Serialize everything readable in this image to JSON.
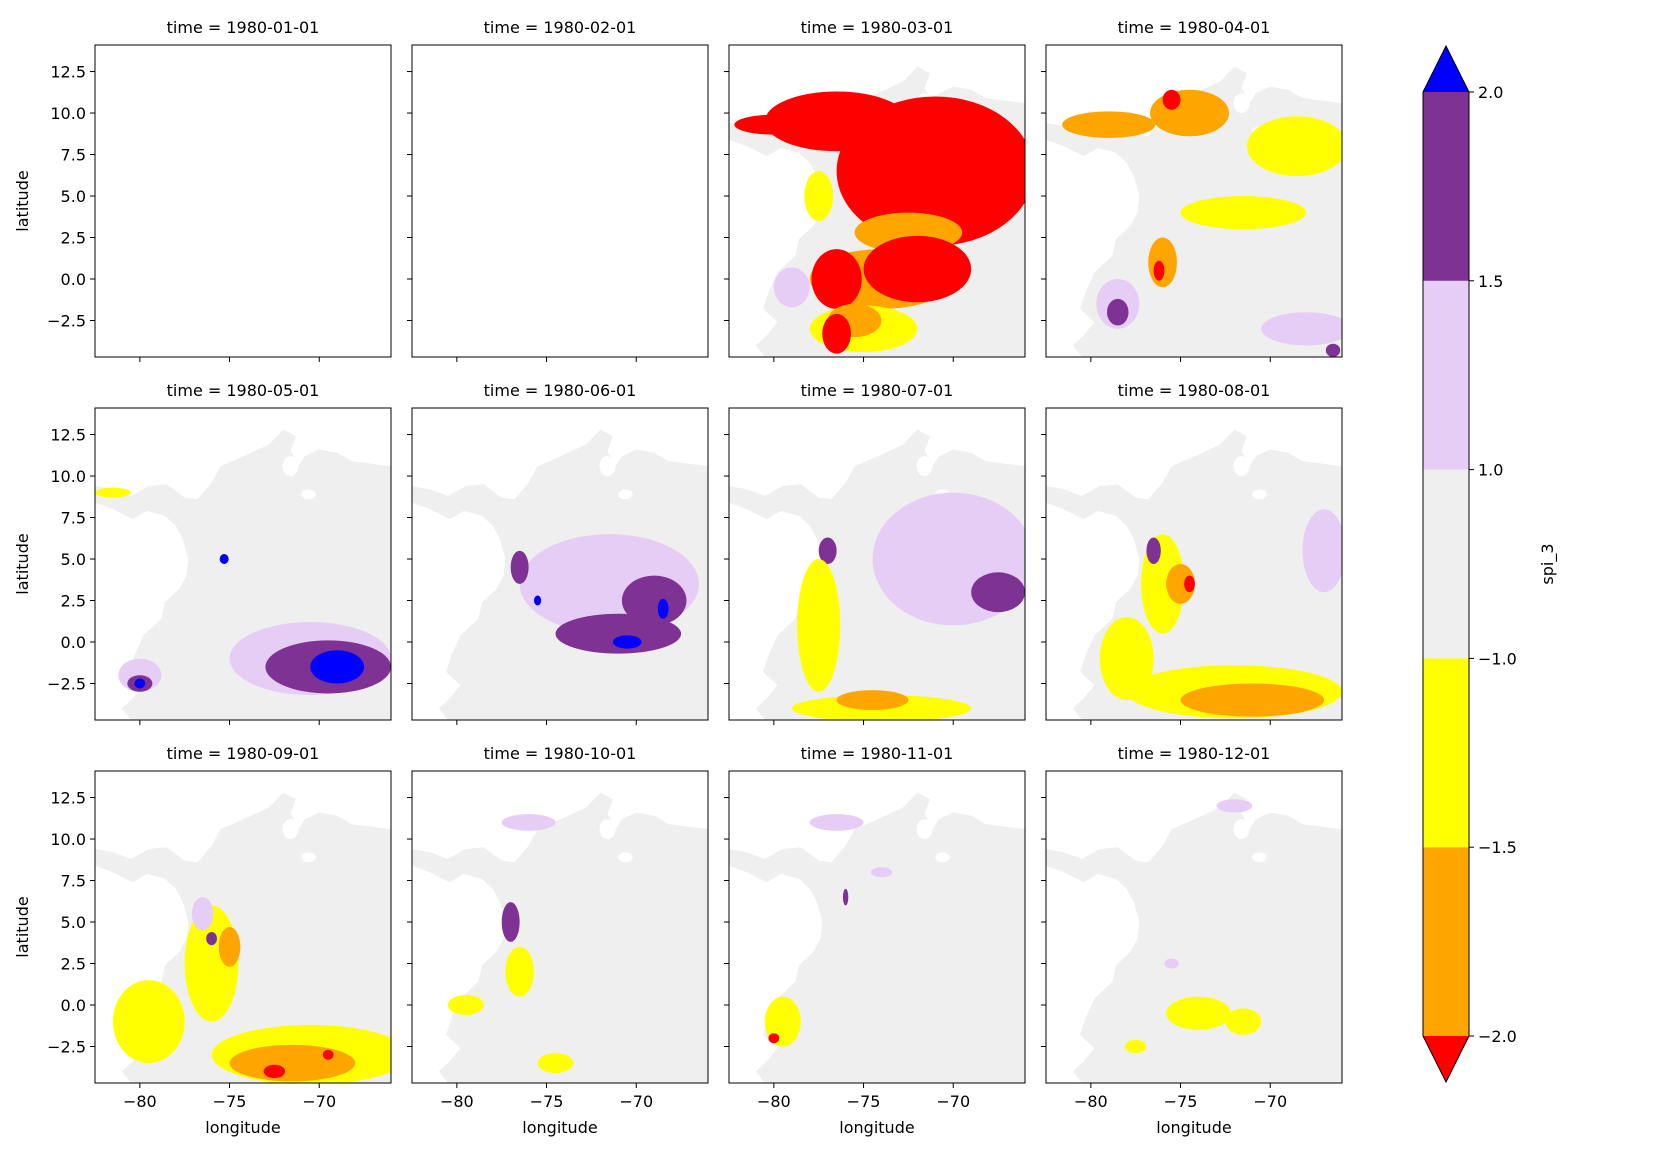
{
  "chart_data": {
    "type": "heatmap",
    "layout": "facet-grid",
    "rows": 3,
    "cols": 4,
    "xlabel": "longitude",
    "ylabel": "latitude",
    "xlim": [
      -82.5,
      -66.0
    ],
    "ylim": [
      -4.7,
      14.1
    ],
    "xticks": [
      -80,
      -75,
      -70
    ],
    "yticks": [
      -2.5,
      0.0,
      2.5,
      5.0,
      7.5,
      10.0,
      12.5
    ],
    "xtick_labels": [
      "−80",
      "−75",
      "−70"
    ],
    "ytick_labels": [
      "−2.5",
      "0.0",
      "2.5",
      "5.0",
      "7.5",
      "10.0",
      "12.5"
    ],
    "facet_titles": [
      "time = 1980-01-01",
      "time = 1980-02-01",
      "time = 1980-03-01",
      "time = 1980-04-01",
      "time = 1980-05-01",
      "time = 1980-06-01",
      "time = 1980-07-01",
      "time = 1980-08-01",
      "time = 1980-09-01",
      "time = 1980-10-01",
      "time = 1980-11-01",
      "time = 1980-12-01"
    ],
    "colorbar": {
      "label": "spi_3",
      "bounds": [
        -2.0,
        -1.5,
        -1.0,
        1.0,
        1.5,
        2.0
      ],
      "tick_labels": [
        "−2.0",
        "−1.5",
        "−1.0",
        "1.0",
        "1.5",
        "2.0"
      ],
      "colors": [
        "#ffa500",
        "#ffff00",
        "#efefef",
        "#e6cdf5",
        "#7e3293"
      ],
      "under_color": "#ff0000",
      "over_color": "#0000ff",
      "extend": "both"
    },
    "panels": [
      {
        "date": "1980-01-01",
        "blobs": []
      },
      {
        "date": "1980-02-01",
        "blobs": []
      },
      {
        "date": "1980-03-01",
        "blobs": [
          {
            "cls": -3,
            "cx": -71.0,
            "cy": 6.5,
            "rx": 5.5,
            "ry": 4.5
          },
          {
            "cls": -3,
            "cx": -76.5,
            "cy": 9.5,
            "rx": 4.0,
            "ry": 1.8
          },
          {
            "cls": -3,
            "cx": -80.0,
            "cy": 9.3,
            "rx": 2.2,
            "ry": 0.6
          },
          {
            "cls": -2,
            "cx": -72.5,
            "cy": 2.8,
            "rx": 3.0,
            "ry": 1.2
          },
          {
            "cls": -2,
            "cx": -74.0,
            "cy": 0.0,
            "rx": 4.0,
            "ry": 1.8
          },
          {
            "cls": -3,
            "cx": -72.0,
            "cy": 0.6,
            "rx": 3.0,
            "ry": 2.0
          },
          {
            "cls": -3,
            "cx": -76.5,
            "cy": 0.0,
            "rx": 1.4,
            "ry": 1.8
          },
          {
            "cls": -1,
            "cx": -75.0,
            "cy": -3.0,
            "rx": 3.0,
            "ry": 1.4
          },
          {
            "cls": -2,
            "cx": -75.5,
            "cy": -2.5,
            "rx": 1.5,
            "ry": 1.0
          },
          {
            "cls": -3,
            "cx": -76.5,
            "cy": -3.3,
            "rx": 0.8,
            "ry": 1.2
          },
          {
            "cls": 1,
            "cx": -79.0,
            "cy": -0.5,
            "rx": 1.0,
            "ry": 1.2
          },
          {
            "cls": -1,
            "cx": -77.5,
            "cy": 5.0,
            "rx": 0.8,
            "ry": 1.5
          }
        ]
      },
      {
        "date": "1980-04-01",
        "blobs": [
          {
            "cls": -1,
            "cx": -68.5,
            "cy": 8.0,
            "rx": 2.8,
            "ry": 1.8
          },
          {
            "cls": -1,
            "cx": -71.5,
            "cy": 4.0,
            "rx": 3.5,
            "ry": 1.0
          },
          {
            "cls": -2,
            "cx": -79.0,
            "cy": 9.3,
            "rx": 2.6,
            "ry": 0.8
          },
          {
            "cls": -2,
            "cx": -74.5,
            "cy": 10.0,
            "rx": 2.2,
            "ry": 1.4
          },
          {
            "cls": -3,
            "cx": -75.5,
            "cy": 10.8,
            "rx": 0.5,
            "ry": 0.6
          },
          {
            "cls": -2,
            "cx": -76.0,
            "cy": 1.0,
            "rx": 0.8,
            "ry": 1.5
          },
          {
            "cls": -3,
            "cx": -76.2,
            "cy": 0.5,
            "rx": 0.3,
            "ry": 0.6
          },
          {
            "cls": 1,
            "cx": -78.5,
            "cy": -1.5,
            "rx": 1.2,
            "ry": 1.5
          },
          {
            "cls": 2,
            "cx": -78.5,
            "cy": -2.0,
            "rx": 0.6,
            "ry": 0.8
          },
          {
            "cls": 1,
            "cx": -68.0,
            "cy": -3.0,
            "rx": 2.5,
            "ry": 1.0
          },
          {
            "cls": 2,
            "cx": -66.5,
            "cy": -4.3,
            "rx": 0.4,
            "ry": 0.4
          }
        ]
      },
      {
        "date": "1980-05-01",
        "blobs": [
          {
            "cls": 1,
            "cx": -70.5,
            "cy": -1.0,
            "rx": 4.5,
            "ry": 2.2
          },
          {
            "cls": 2,
            "cx": -69.5,
            "cy": -1.5,
            "rx": 3.5,
            "ry": 1.6
          },
          {
            "cls": 3,
            "cx": -69.0,
            "cy": -1.5,
            "rx": 1.5,
            "ry": 1.0
          },
          {
            "cls": 1,
            "cx": -80.0,
            "cy": -2.0,
            "rx": 1.2,
            "ry": 1.0
          },
          {
            "cls": 2,
            "cx": -80.0,
            "cy": -2.5,
            "rx": 0.7,
            "ry": 0.5
          },
          {
            "cls": 3,
            "cx": -80.0,
            "cy": -2.5,
            "rx": 0.3,
            "ry": 0.3
          },
          {
            "cls": 3,
            "cx": -75.3,
            "cy": 5.0,
            "rx": 0.25,
            "ry": 0.3
          },
          {
            "cls": -1,
            "cx": -81.5,
            "cy": 9.0,
            "rx": 1.0,
            "ry": 0.3
          }
        ]
      },
      {
        "date": "1980-06-01",
        "blobs": [
          {
            "cls": 1,
            "cx": -71.5,
            "cy": 3.5,
            "rx": 5.0,
            "ry": 3.0
          },
          {
            "cls": 2,
            "cx": -71.0,
            "cy": 0.5,
            "rx": 3.5,
            "ry": 1.2
          },
          {
            "cls": 2,
            "cx": -69.0,
            "cy": 2.5,
            "rx": 1.8,
            "ry": 1.5
          },
          {
            "cls": 3,
            "cx": -70.5,
            "cy": 0.0,
            "rx": 0.8,
            "ry": 0.4
          },
          {
            "cls": 3,
            "cx": -68.5,
            "cy": 2.0,
            "rx": 0.3,
            "ry": 0.6
          },
          {
            "cls": 2,
            "cx": -76.5,
            "cy": 4.5,
            "rx": 0.5,
            "ry": 1.0
          },
          {
            "cls": 3,
            "cx": -75.5,
            "cy": 2.5,
            "rx": 0.2,
            "ry": 0.3
          }
        ]
      },
      {
        "date": "1980-07-01",
        "blobs": [
          {
            "cls": 1,
            "cx": -70.0,
            "cy": 5.0,
            "rx": 4.5,
            "ry": 4.0
          },
          {
            "cls": 2,
            "cx": -67.5,
            "cy": 3.0,
            "rx": 1.5,
            "ry": 1.2
          },
          {
            "cls": 2,
            "cx": -77.0,
            "cy": 5.5,
            "rx": 0.5,
            "ry": 0.8
          },
          {
            "cls": -1,
            "cx": -77.5,
            "cy": 1.0,
            "rx": 1.2,
            "ry": 4.0
          },
          {
            "cls": -1,
            "cx": -74.0,
            "cy": -4.0,
            "rx": 5.0,
            "ry": 0.8
          },
          {
            "cls": -2,
            "cx": -74.5,
            "cy": -3.5,
            "rx": 2.0,
            "ry": 0.6
          }
        ]
      },
      {
        "date": "1980-08-01",
        "blobs": [
          {
            "cls": -1,
            "cx": -76.0,
            "cy": 3.5,
            "rx": 1.2,
            "ry": 3.0
          },
          {
            "cls": -1,
            "cx": -78.0,
            "cy": -1.0,
            "rx": 1.5,
            "ry": 2.5
          },
          {
            "cls": -2,
            "cx": -75.0,
            "cy": 3.5,
            "rx": 0.8,
            "ry": 1.2
          },
          {
            "cls": -3,
            "cx": -74.5,
            "cy": 3.5,
            "rx": 0.3,
            "ry": 0.5
          },
          {
            "cls": -1,
            "cx": -72.0,
            "cy": -3.0,
            "rx": 6.0,
            "ry": 1.6
          },
          {
            "cls": -2,
            "cx": -71.0,
            "cy": -3.5,
            "rx": 4.0,
            "ry": 1.0
          },
          {
            "cls": 1,
            "cx": -67.0,
            "cy": 5.5,
            "rx": 1.2,
            "ry": 2.5
          },
          {
            "cls": 2,
            "cx": -76.5,
            "cy": 5.5,
            "rx": 0.4,
            "ry": 0.8
          }
        ]
      },
      {
        "date": "1980-09-01",
        "blobs": [
          {
            "cls": -1,
            "cx": -70.5,
            "cy": -3.0,
            "rx": 5.5,
            "ry": 1.8
          },
          {
            "cls": -2,
            "cx": -71.5,
            "cy": -3.5,
            "rx": 3.5,
            "ry": 1.1
          },
          {
            "cls": -3,
            "cx": -72.5,
            "cy": -4.0,
            "rx": 0.6,
            "ry": 0.4
          },
          {
            "cls": -3,
            "cx": -69.5,
            "cy": -3.0,
            "rx": 0.3,
            "ry": 0.3
          },
          {
            "cls": -1,
            "cx": -79.5,
            "cy": -1.0,
            "rx": 2.0,
            "ry": 2.5
          },
          {
            "cls": -1,
            "cx": -76.0,
            "cy": 2.5,
            "rx": 1.5,
            "ry": 3.5
          },
          {
            "cls": -2,
            "cx": -75.0,
            "cy": 3.5,
            "rx": 0.6,
            "ry": 1.2
          },
          {
            "cls": 1,
            "cx": -76.5,
            "cy": 5.5,
            "rx": 0.6,
            "ry": 1.0
          },
          {
            "cls": 2,
            "cx": -76.0,
            "cy": 4.0,
            "rx": 0.3,
            "ry": 0.4
          }
        ]
      },
      {
        "date": "1980-10-01",
        "blobs": [
          {
            "cls": 2,
            "cx": -77.0,
            "cy": 5.0,
            "rx": 0.5,
            "ry": 1.2
          },
          {
            "cls": -1,
            "cx": -79.5,
            "cy": 0.0,
            "rx": 1.0,
            "ry": 0.6
          },
          {
            "cls": -1,
            "cx": -76.5,
            "cy": 2.0,
            "rx": 0.8,
            "ry": 1.5
          },
          {
            "cls": -1,
            "cx": -74.5,
            "cy": -3.5,
            "rx": 1.0,
            "ry": 0.6
          },
          {
            "cls": 1,
            "cx": -76.0,
            "cy": 11.0,
            "rx": 1.5,
            "ry": 0.5
          }
        ]
      },
      {
        "date": "1980-11-01",
        "blobs": [
          {
            "cls": -1,
            "cx": -79.5,
            "cy": -1.0,
            "rx": 1.0,
            "ry": 1.5
          },
          {
            "cls": -3,
            "cx": -80.0,
            "cy": -2.0,
            "rx": 0.3,
            "ry": 0.3
          },
          {
            "cls": 1,
            "cx": -76.5,
            "cy": 11.0,
            "rx": 1.5,
            "ry": 0.5
          },
          {
            "cls": 2,
            "cx": -76.0,
            "cy": 6.5,
            "rx": 0.15,
            "ry": 0.5
          },
          {
            "cls": 1,
            "cx": -74.0,
            "cy": 8.0,
            "rx": 0.6,
            "ry": 0.3
          }
        ]
      },
      {
        "date": "1980-12-01",
        "blobs": [
          {
            "cls": -1,
            "cx": -74.0,
            "cy": -0.5,
            "rx": 1.8,
            "ry": 1.0
          },
          {
            "cls": -1,
            "cx": -71.5,
            "cy": -1.0,
            "rx": 1.0,
            "ry": 0.8
          },
          {
            "cls": -1,
            "cx": -77.5,
            "cy": -2.5,
            "rx": 0.6,
            "ry": 0.4
          },
          {
            "cls": 1,
            "cx": -72.0,
            "cy": 12.0,
            "rx": 1.0,
            "ry": 0.4
          },
          {
            "cls": 1,
            "cx": -75.5,
            "cy": 2.5,
            "rx": 0.4,
            "ry": 0.3
          }
        ]
      }
    ]
  }
}
